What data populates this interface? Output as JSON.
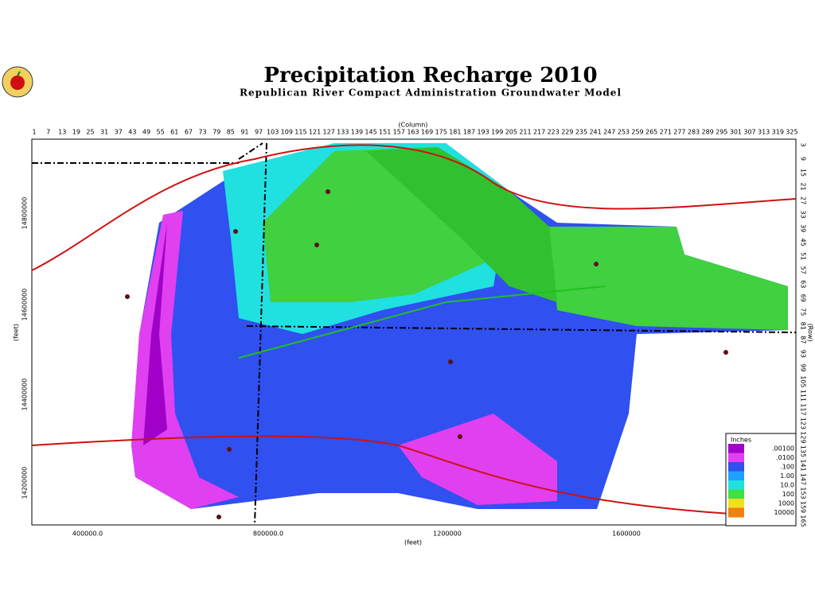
{
  "header": {
    "title": "Precipitation Recharge 2010",
    "subtitle": "Republican River Compact Administration Groundwater Model"
  },
  "axes": {
    "column_label": "(Column)",
    "row_label": "(Row)",
    "x_label": "(feet)",
    "y_label": "(feet)",
    "columns": [
      1,
      7,
      13,
      19,
      25,
      31,
      37,
      43,
      49,
      55,
      61,
      67,
      73,
      79,
      85,
      91,
      97,
      103,
      109,
      115,
      121,
      127,
      133,
      139,
      145,
      151,
      157,
      163,
      169,
      175,
      181,
      187,
      193,
      199,
      205,
      211,
      217,
      223,
      229,
      235,
      241,
      247,
      253,
      259,
      265,
      271,
      277,
      283,
      289,
      295,
      301,
      307,
      313,
      319,
      325
    ],
    "rows": [
      3,
      9,
      15,
      21,
      27,
      33,
      39,
      45,
      51,
      57,
      63,
      69,
      75,
      81,
      87,
      93,
      99,
      105,
      111,
      117,
      123,
      129,
      135,
      141,
      147,
      153,
      159,
      165
    ],
    "x_ticks": [
      "400000.0",
      "800000.0",
      "1200000",
      "1600000"
    ],
    "y_ticks": [
      "14800000",
      "14600000",
      "14400000",
      "14200000"
    ]
  },
  "legend": {
    "title": "Inches",
    "items": [
      {
        "label": ".00100",
        "color": "#a000c8"
      },
      {
        "label": ".0100",
        "color": "#e040f0"
      },
      {
        "label": ".100",
        "color": "#3050f0"
      },
      {
        "label": "1.00",
        "color": "#20a0ff"
      },
      {
        "label": "10.0",
        "color": "#20e0e0"
      },
      {
        "label": "100",
        "color": "#40e040"
      },
      {
        "label": "1000",
        "color": "#f0e020"
      },
      {
        "label": "10000",
        "color": "#f08010"
      }
    ]
  }
}
